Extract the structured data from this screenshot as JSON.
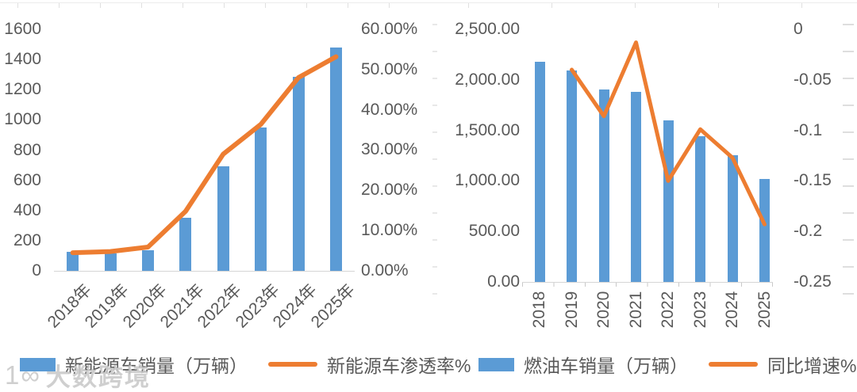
{
  "colors": {
    "bar_blue": "#5B9BD5",
    "line_orange": "#ED7D31",
    "axis_text": "#595959",
    "axis_line": "#D6D6D6"
  },
  "watermark": {
    "logo_glyph": "1∞",
    "label": "大数跨境"
  },
  "chart_data": [
    {
      "type": "bar+line combo",
      "title": "",
      "categories": [
        "2018年",
        "2019年",
        "2020年",
        "2021年",
        "2022年",
        "2023年",
        "2024年",
        "2025年"
      ],
      "series": [
        {
          "name": "新能源车销量（万辆）",
          "type": "bar",
          "axis": "left",
          "values": [
            125,
            117,
            137,
            350,
            690,
            948,
            1285,
            1480
          ]
        },
        {
          "name": "新能源车渗透率%",
          "type": "line",
          "axis": "right",
          "values": [
            4.5,
            4.8,
            5.9,
            14.8,
            29.0,
            36.4,
            48.0,
            53.2
          ]
        }
      ],
      "y_left": {
        "ticks": [
          "1600",
          "1400",
          "1200",
          "1000",
          "800",
          "600",
          "400",
          "200",
          "0"
        ],
        "min": 0,
        "max": 1600
      },
      "y_right": {
        "ticks": [
          "60.00%",
          "50.00%",
          "40.00%",
          "30.00%",
          "20.00%",
          "10.00%",
          "0.00%"
        ],
        "min": 0,
        "max": 60
      },
      "grid": false,
      "legend_position": "bottom"
    },
    {
      "type": "bar+line combo",
      "title": "",
      "categories": [
        "2018",
        "2019",
        "2020",
        "2021",
        "2022",
        "2023",
        "2024",
        "2025"
      ],
      "series": [
        {
          "name": "燃油车销量（万辆）",
          "type": "bar",
          "axis": "left",
          "values": [
            2175,
            2095,
            1905,
            1880,
            1600,
            1440,
            1255,
            1015
          ]
        },
        {
          "name": "同比增速%",
          "type": "line",
          "axis": "right",
          "values": [
            null,
            -0.04,
            -0.086,
            -0.013,
            -0.15,
            -0.099,
            -0.127,
            -0.193
          ]
        }
      ],
      "y_left": {
        "ticks": [
          "2,500.00",
          "2,000.00",
          "1,500.00",
          "1,000.00",
          "500.00",
          "0.00"
        ],
        "min": 0,
        "max": 2500
      },
      "y_right": {
        "ticks": [
          "0",
          "-0.05",
          "-0.1",
          "-0.15",
          "-0.2",
          "-0.25"
        ],
        "min": -0.25,
        "max": 0
      },
      "grid": false,
      "legend_position": "bottom"
    }
  ]
}
